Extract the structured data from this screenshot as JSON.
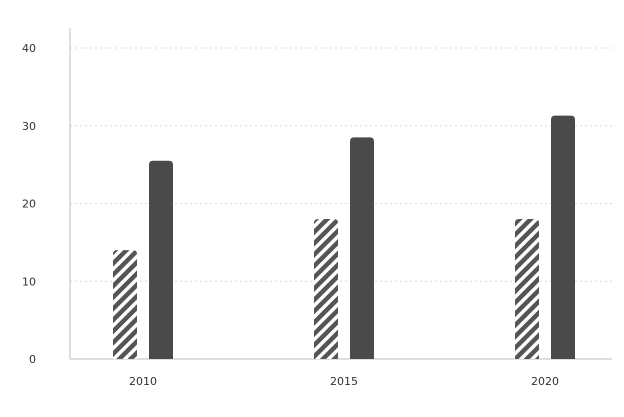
{
  "colors": {
    "dark_bar": "#4a4a4a",
    "hatch_stroke": "#555555",
    "hatch_bg": "#ffffff",
    "grid": "#d8d8d8",
    "axis": "#bdbdbd",
    "text": "#333333"
  },
  "chart_data": {
    "type": "bar",
    "title": "",
    "xlabel": "",
    "ylabel": "",
    "categories": [
      "2010",
      "2015",
      "2020"
    ],
    "series": [
      {
        "pattern": "hatched",
        "values": [
          14,
          18,
          18
        ]
      },
      {
        "pattern": "solid",
        "values": [
          25.5,
          28.5,
          31.3
        ]
      }
    ],
    "ylim": [
      0,
      40
    ],
    "yticks": [
      0,
      10,
      20,
      30,
      40
    ],
    "grid": "horizontal dotted",
    "legend": "none"
  }
}
